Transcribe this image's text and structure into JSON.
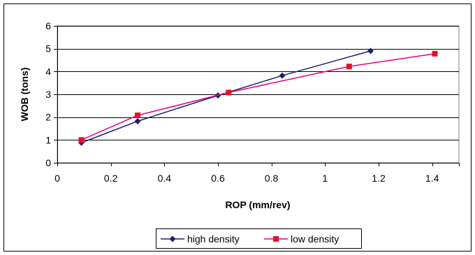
{
  "chart_data": {
    "type": "line",
    "title": "",
    "xlabel": "ROP (mm/rev)",
    "ylabel": "WOB (tons)",
    "xlim": [
      0,
      1.5
    ],
    "ylim": [
      0,
      6
    ],
    "x_ticks": [
      "0",
      "0.2",
      "0.4",
      "0.6",
      "0.8",
      "1",
      "1.2",
      "1.4"
    ],
    "y_ticks": [
      "0",
      "1",
      "2",
      "3",
      "4",
      "5",
      "6"
    ],
    "grid": "horizontal",
    "legend_position": "bottom",
    "series": [
      {
        "name": "high density",
        "color": "#1f1f6b",
        "marker": "diamond",
        "points": [
          [
            0.09,
            0.88
          ],
          [
            0.3,
            1.82
          ],
          [
            0.6,
            2.95
          ],
          [
            0.84,
            3.82
          ],
          [
            1.17,
            4.9
          ]
        ]
      },
      {
        "name": "low density",
        "color": "#e6007e",
        "marker_color": "#e8102a",
        "marker": "square",
        "points": [
          [
            0.09,
            1.0
          ],
          [
            0.3,
            2.08
          ],
          [
            0.64,
            3.08
          ],
          [
            1.09,
            4.22
          ],
          [
            1.41,
            4.78
          ]
        ]
      }
    ]
  }
}
